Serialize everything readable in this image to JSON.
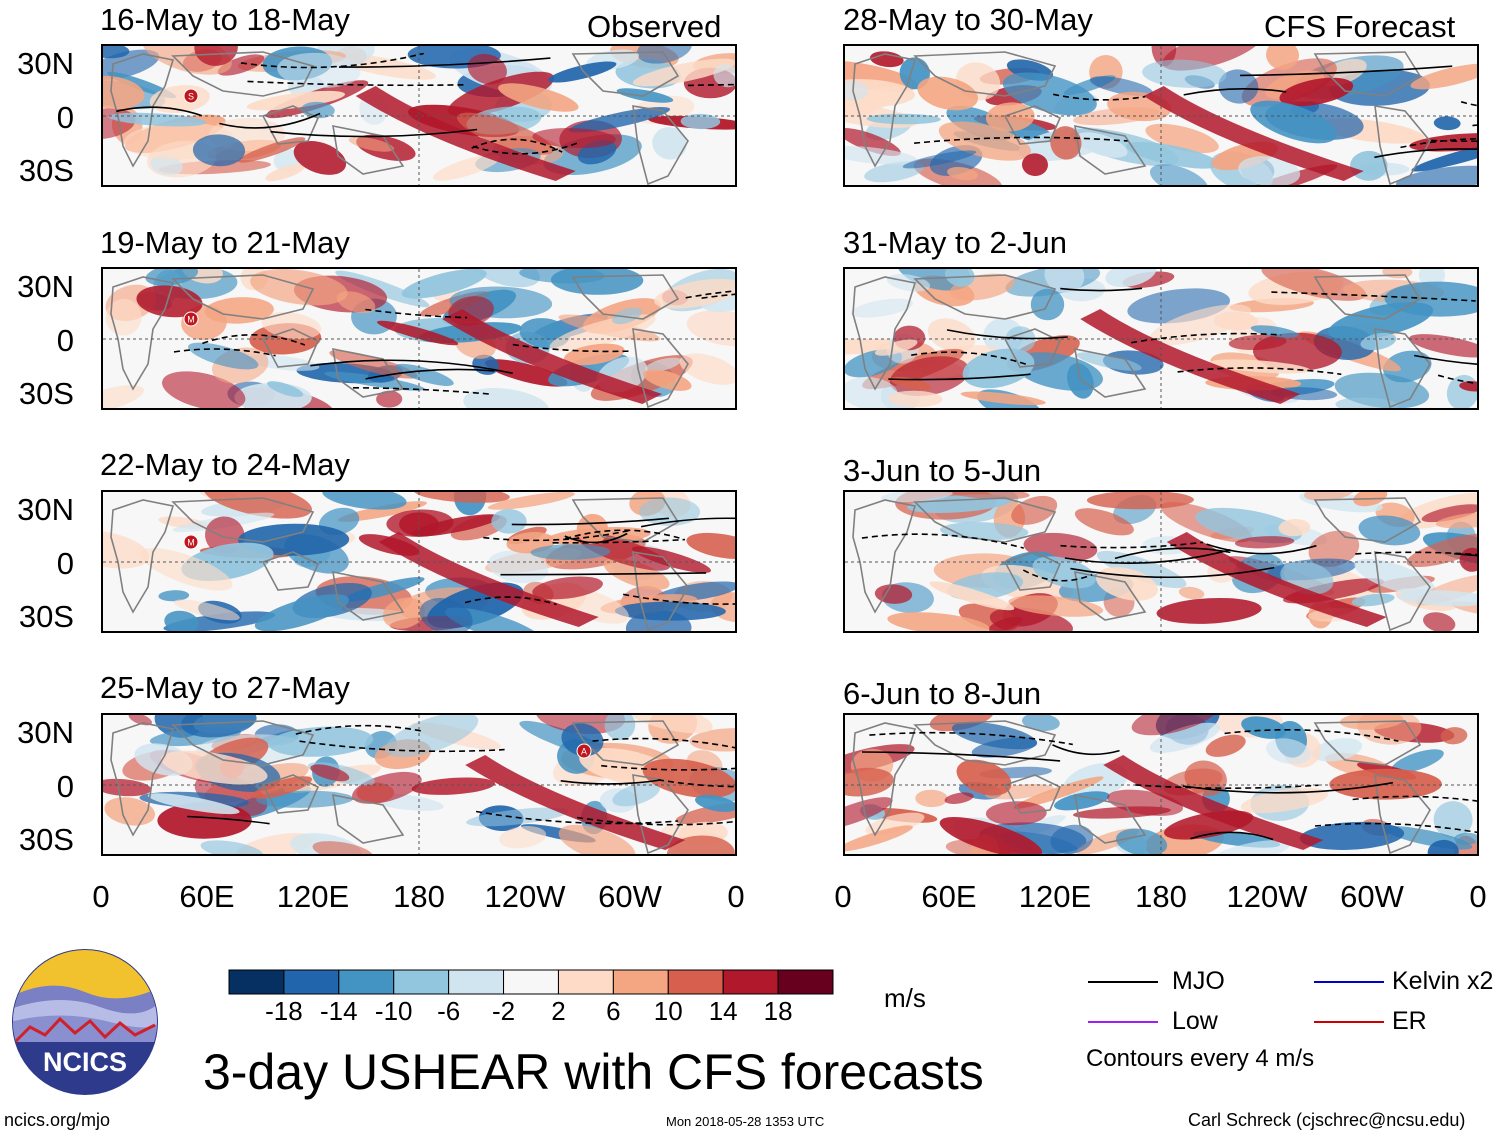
{
  "panels_left": [
    {
      "title": "16-May to 18-May",
      "tag": "Observed",
      "marker": "S"
    },
    {
      "title": "19-May to 21-May",
      "tag": "",
      "marker": "M"
    },
    {
      "title": "22-May to 24-May",
      "tag": "",
      "marker": "M"
    },
    {
      "title": "25-May to 27-May",
      "tag": "",
      "marker": "A"
    }
  ],
  "panels_right": [
    {
      "title": "28-May to 30-May",
      "tag": "CFS Forecast"
    },
    {
      "title": "31-May to 2-Jun",
      "tag": ""
    },
    {
      "title": "3-Jun to 5-Jun",
      "tag": ""
    },
    {
      "title": "6-Jun to 8-Jun",
      "tag": ""
    }
  ],
  "lat_labels": [
    "30N",
    "0",
    "30S"
  ],
  "lon_labels": [
    "0",
    "60E",
    "120E",
    "180",
    "120W",
    "60W",
    "0"
  ],
  "colorbar": {
    "colors": [
      "#053061",
      "#2166ac",
      "#4393c3",
      "#92c5de",
      "#d1e5f0",
      "#f7f7f7",
      "#fddbc7",
      "#f4a582",
      "#d6604d",
      "#b2182b",
      "#67001f"
    ],
    "labels": [
      "-18",
      "-14",
      "-10",
      "-6",
      "-2",
      "2",
      "6",
      "10",
      "14",
      "18"
    ],
    "units": "m/s"
  },
  "legend": {
    "items": [
      {
        "label": "MJO",
        "color": "#000000"
      },
      {
        "label": "Kelvin x2",
        "color": "#0000cc"
      },
      {
        "label": "Low",
        "color": "#a020f0"
      },
      {
        "label": "ER",
        "color": "#cc0000"
      }
    ],
    "note": "Contours every 4 m/s"
  },
  "logo_text": "NCICS",
  "main_title": "3-day USHEAR with CFS forecasts",
  "footer": {
    "left": "ncics.org/mjo",
    "center": "Mon 2018-05-28 1353 UTC",
    "right": "Carl Schreck (cjschrec@ncsu.edu)"
  }
}
